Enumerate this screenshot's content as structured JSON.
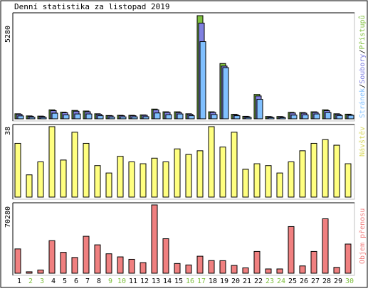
{
  "title": "Denní statistika za listopad 2019",
  "colors": {
    "frame": "#c0c0c0",
    "background": "#ffffff",
    "hits": "#80c040",
    "files": "#8080e0",
    "pages": "#80c0ff",
    "visits": "#ffff80",
    "volume": "#f08080",
    "weekend_day": "#80c040",
    "weekday": "#000000"
  },
  "panels": {
    "top": {
      "ymax_label": "5280",
      "legend_parts": [
        "Stránek",
        "Soubory",
        "Přístupů"
      ],
      "legend_sep": "/"
    },
    "middle": {
      "ymax_label": "38",
      "legend": "Návštěv"
    },
    "bottom": {
      "ymax_label": "70280",
      "legend": "Objem přenosu"
    }
  },
  "chart_data": [
    {
      "type": "bar",
      "title": "Denní statistika za listopad 2019",
      "categories": [
        "1",
        "2",
        "3",
        "4",
        "5",
        "6",
        "7",
        "8",
        "9",
        "10",
        "11",
        "12",
        "13",
        "14",
        "15",
        "16",
        "17",
        "18",
        "19",
        "20",
        "21",
        "22",
        "23",
        "24",
        "25",
        "26",
        "27",
        "28",
        "29",
        "30"
      ],
      "ylim": [
        0,
        5280
      ],
      "series": [
        {
          "name": "Přístupů",
          "values": [
            260,
            150,
            140,
            460,
            340,
            430,
            400,
            260,
            170,
            180,
            180,
            200,
            500,
            360,
            360,
            260,
            5280,
            360,
            2830,
            230,
            130,
            1250,
            120,
            120,
            330,
            320,
            360,
            460,
            260,
            240
          ]
        },
        {
          "name": "Soubory",
          "values": [
            230,
            130,
            120,
            420,
            310,
            390,
            360,
            230,
            150,
            160,
            160,
            180,
            460,
            330,
            320,
            230,
            4900,
            330,
            2700,
            200,
            110,
            1170,
            100,
            100,
            300,
            290,
            330,
            420,
            230,
            210
          ]
        },
        {
          "name": "Stránek",
          "values": [
            150,
            80,
            70,
            290,
            200,
            250,
            250,
            160,
            90,
            100,
            100,
            110,
            300,
            210,
            250,
            160,
            3950,
            220,
            2620,
            160,
            70,
            1000,
            60,
            60,
            190,
            200,
            250,
            320,
            170,
            180
          ]
        }
      ]
    },
    {
      "type": "bar",
      "categories": [
        "1",
        "2",
        "3",
        "4",
        "5",
        "6",
        "7",
        "8",
        "9",
        "10",
        "11",
        "12",
        "13",
        "14",
        "15",
        "16",
        "17",
        "18",
        "19",
        "20",
        "21",
        "22",
        "23",
        "24",
        "25",
        "26",
        "27",
        "28",
        "29",
        "30"
      ],
      "ylim": [
        0,
        38
      ],
      "series": [
        {
          "name": "Návštěv",
          "values": [
            29,
            12,
            19,
            38,
            20,
            35,
            29,
            17,
            13,
            22,
            19,
            18,
            21,
            19,
            26,
            23,
            25,
            38,
            27,
            35,
            15,
            18,
            17,
            13,
            19,
            25,
            29,
            31,
            28,
            18
          ]
        }
      ]
    },
    {
      "type": "bar",
      "categories": [
        "1",
        "2",
        "3",
        "4",
        "5",
        "6",
        "7",
        "8",
        "9",
        "10",
        "11",
        "12",
        "13",
        "14",
        "15",
        "16",
        "17",
        "18",
        "19",
        "20",
        "21",
        "22",
        "23",
        "24",
        "25",
        "26",
        "27",
        "28",
        "29",
        "30"
      ],
      "ylim": [
        0,
        70280
      ],
      "series": [
        {
          "name": "Objem přenosu",
          "values": [
            25000,
            1500,
            3300,
            33500,
            21500,
            16200,
            38000,
            29200,
            20000,
            16800,
            14300,
            10900,
            70280,
            35500,
            10000,
            8500,
            17500,
            13000,
            12900,
            8000,
            5500,
            22400,
            4400,
            4400,
            48000,
            7500,
            22400,
            56000,
            6000,
            30000
          ]
        }
      ]
    }
  ],
  "weekend_days": [
    "2",
    "3",
    "9",
    "10",
    "16",
    "17",
    "23",
    "24",
    "30"
  ]
}
